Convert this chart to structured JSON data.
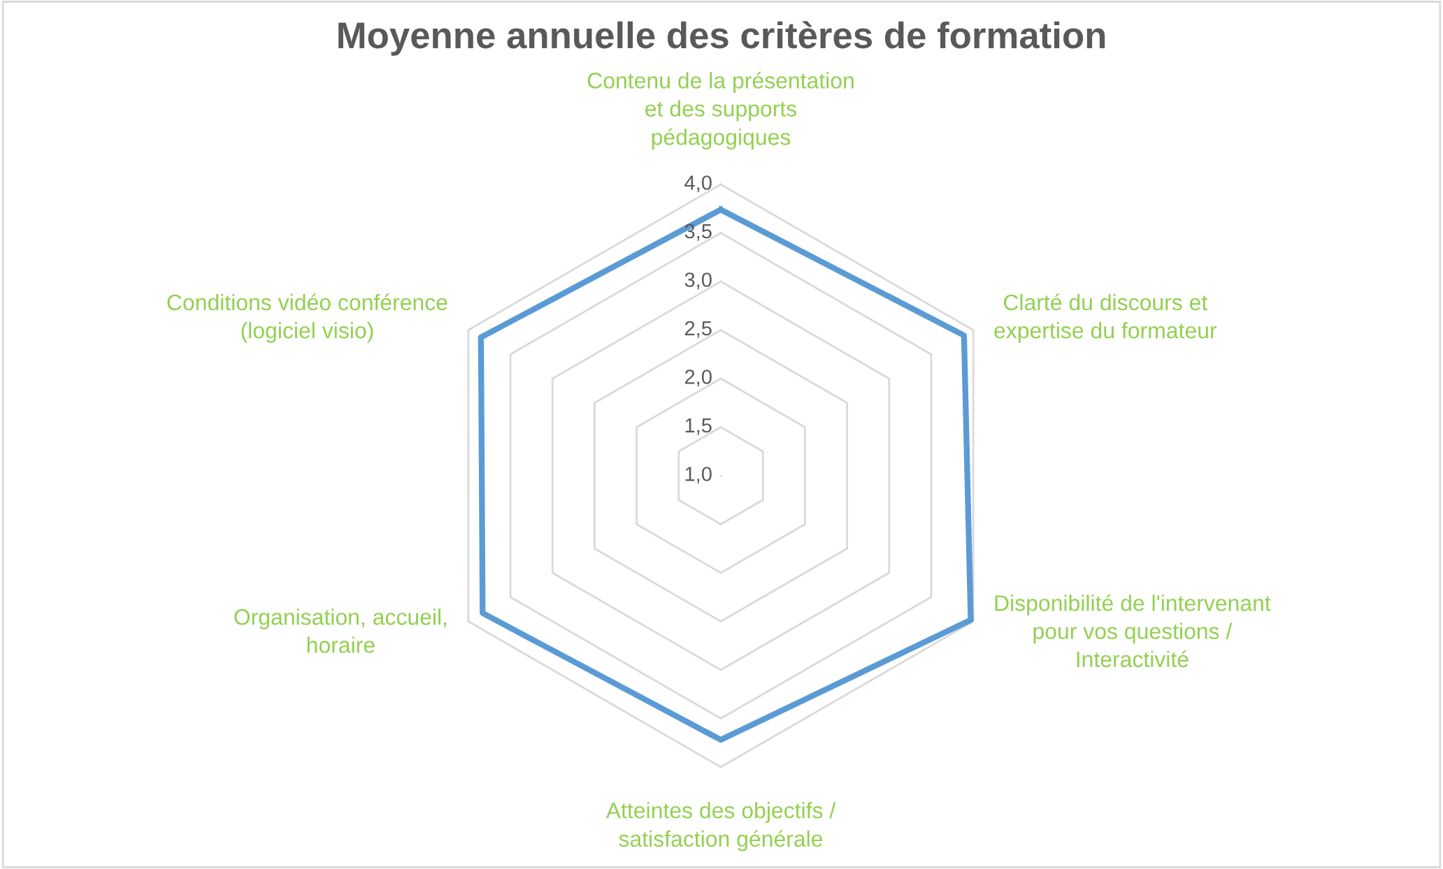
{
  "chart_data": {
    "type": "radar",
    "title": "Moyenne annuelle des critères de formation",
    "categories": [
      "Contenu de la présentation\net des supports\npédagogiques",
      "Clarté du discours et\nexpertise du formateur",
      "Disponibilité de l'intervenant\npour vos questions /\nInteractivité",
      "Atteintes des objectifs /\nsatisfaction générale",
      "Organisation, accueil,\nhoraire",
      "Conditions vidéo conférence\n(logiciel visio)"
    ],
    "series": [
      {
        "color": "#5b9bd5",
        "values": [
          3.74,
          3.89,
          3.97,
          3.72,
          3.83,
          3.85
        ]
      }
    ],
    "ylim": [
      1,
      4
    ],
    "yticks": [
      {
        "value": 1,
        "label": "1,0"
      },
      {
        "value": 1.5,
        "label": "1,5"
      },
      {
        "value": 2,
        "label": "2,0"
      },
      {
        "value": 2.5,
        "label": "2,5"
      },
      {
        "value": 3,
        "label": "3,0"
      },
      {
        "value": 3.5,
        "label": "3,5"
      },
      {
        "value": 4,
        "label": "4,0"
      }
    ],
    "grid": true,
    "marker": "none",
    "line_style": "solid"
  }
}
